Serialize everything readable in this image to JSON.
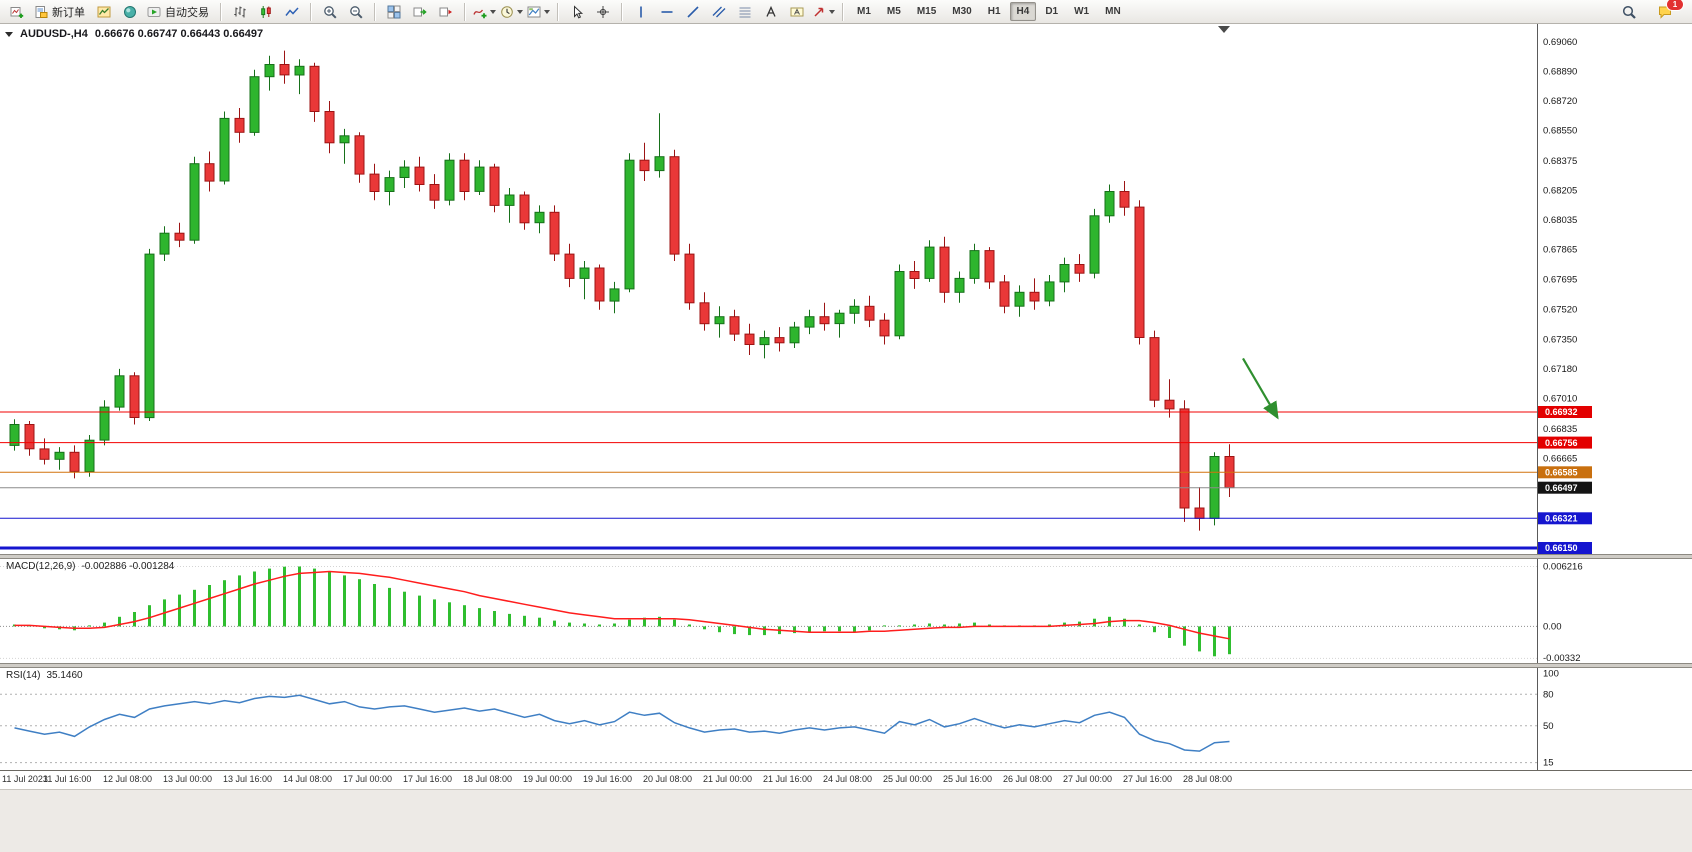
{
  "toolbar": {
    "groups": [
      {
        "name": "standard-group",
        "items": [
          {
            "name": "new-chart-button",
            "icon": "chart-plus"
          },
          {
            "name": "new-order-button",
            "icon": "new-order",
            "label": "新订单"
          },
          {
            "name": "market-watch-button",
            "icon": "market-watch"
          },
          {
            "name": "navigator-button",
            "icon": "navigator"
          },
          {
            "name": "autotrading-button",
            "icon": "autotrading",
            "label": "自动交易"
          }
        ]
      },
      {
        "name": "chart-type-group",
        "items": [
          {
            "name": "bar-chart-button",
            "icon": "bars"
          },
          {
            "name": "candlestick-chart-button",
            "icon": "candles"
          },
          {
            "name": "line-chart-button",
            "icon": "line-chart"
          }
        ]
      },
      {
        "name": "zoom-group",
        "items": [
          {
            "name": "zoom-in-button",
            "icon": "zoom-in"
          },
          {
            "name": "zoom-out-button",
            "icon": "zoom-out"
          }
        ]
      },
      {
        "name": "window-group",
        "items": [
          {
            "name": "tile-windows-button",
            "icon": "tile-windows"
          },
          {
            "name": "auto-scroll-button",
            "icon": "auto-scroll"
          },
          {
            "name": "chart-shift-button",
            "icon": "chart-shift"
          }
        ]
      },
      {
        "name": "dropdown-group",
        "items": [
          {
            "name": "indicators-button",
            "icon": "indicators",
            "dropdown": true
          },
          {
            "name": "periods-button",
            "icon": "periods",
            "dropdown": true
          },
          {
            "name": "templates-button",
            "icon": "templates",
            "dropdown": true
          }
        ]
      },
      {
        "name": "cursor-group",
        "items": [
          {
            "name": "cursor-button",
            "icon": "cursor"
          },
          {
            "name": "crosshair-button",
            "icon": "crosshair"
          }
        ]
      },
      {
        "name": "objects-group",
        "items": [
          {
            "name": "vertical-line-button",
            "icon": "vline"
          },
          {
            "name": "horizontal-line-button",
            "icon": "hline"
          },
          {
            "name": "trendline-button",
            "icon": "trendline"
          },
          {
            "name": "equidistant-channel-button",
            "icon": "channel"
          },
          {
            "name": "fibonacci-button",
            "icon": "fibonacci"
          },
          {
            "name": "text-button",
            "icon": "text"
          },
          {
            "name": "text-label-button",
            "icon": "text-label"
          },
          {
            "name": "arrows-button",
            "icon": "arrows-dropdown",
            "dropdown": true
          }
        ]
      }
    ],
    "timeframes": {
      "items": [
        "M1",
        "M5",
        "M15",
        "M30",
        "H1",
        "H4",
        "D1",
        "W1",
        "MN"
      ],
      "active": "H4"
    },
    "right": [
      {
        "name": "search-button",
        "icon": "search"
      },
      {
        "name": "notifications-button",
        "icon": "chat",
        "badge": "1"
      }
    ]
  },
  "chart": {
    "title": {
      "symbol_period": "AUDUSD-,H4",
      "ohlc": "0.66676 0.66747 0.66443 0.66497"
    },
    "macd_label": "MACD(12,26,9)",
    "macd_values": "-0.002886 -0.001284",
    "rsi_label": "RSI(14)",
    "rsi_values": "35.1460"
  },
  "colors": {
    "bull": "#2eb52e",
    "bull_border": "#17701a",
    "bear": "#e93838",
    "bear_border": "#9c1414",
    "macd_histogram": "#2fbe2f",
    "macd_signal": "#ff1d1d",
    "rsi_line": "#3f7fc4",
    "dashed_level": "#b0b0b0",
    "axis_border": "#5a5a5a",
    "arrow": "#2f8f2f"
  },
  "chart_data": [
    {
      "type": "candlestick",
      "title": "AUDUSD-,H4",
      "timeframe": "H4",
      "x_labels": [
        "11 Jul 2023",
        "11 Jul 16:00",
        "12 Jul 08:00",
        "13 Jul 00:00",
        "13 Jul 16:00",
        "14 Jul 08:00",
        "17 Jul 00:00",
        "17 Jul 16:00",
        "18 Jul 08:00",
        "19 Jul 00:00",
        "19 Jul 16:00",
        "20 Jul 08:00",
        "21 Jul 00:00",
        "21 Jul 16:00",
        "24 Jul 08:00",
        "25 Jul 00:00",
        "25 Jul 16:00",
        "26 Jul 08:00",
        "27 Jul 00:00",
        "27 Jul 16:00",
        "28 Jul 08:00"
      ],
      "x_label_indices": [
        0,
        4,
        8,
        12,
        16,
        20,
        24,
        28,
        32,
        36,
        40,
        44,
        48,
        52,
        56,
        60,
        64,
        68,
        72,
        76,
        80
      ],
      "y_ticks": [
        "0.69060",
        "0.68890",
        "0.68720",
        "0.68550",
        "0.68375",
        "0.68205",
        "0.68035",
        "0.67865",
        "0.67695",
        "0.67520",
        "0.67350",
        "0.67180",
        "0.67010",
        "0.66835",
        "0.66665"
      ],
      "ylim": [
        0.66116,
        0.69163
      ],
      "candles": [
        [
          0.6674,
          0.6689,
          0.6671,
          0.6686
        ],
        [
          0.6686,
          0.6688,
          0.6668,
          0.6672
        ],
        [
          0.6672,
          0.6678,
          0.6663,
          0.6666
        ],
        [
          0.6666,
          0.6673,
          0.666,
          0.667
        ],
        [
          0.667,
          0.6674,
          0.6655,
          0.6659
        ],
        [
          0.6659,
          0.668,
          0.6656,
          0.6677
        ],
        [
          0.6677,
          0.67,
          0.6674,
          0.6696
        ],
        [
          0.6696,
          0.6718,
          0.6694,
          0.6714
        ],
        [
          0.6714,
          0.6716,
          0.6686,
          0.669
        ],
        [
          0.669,
          0.6787,
          0.6688,
          0.6784
        ],
        [
          0.6784,
          0.68,
          0.678,
          0.6796
        ],
        [
          0.6796,
          0.6802,
          0.6788,
          0.6792
        ],
        [
          0.6792,
          0.684,
          0.679,
          0.6836
        ],
        [
          0.6836,
          0.6843,
          0.682,
          0.6826
        ],
        [
          0.6826,
          0.6866,
          0.6824,
          0.6862
        ],
        [
          0.6862,
          0.6868,
          0.6848,
          0.6854
        ],
        [
          0.6854,
          0.689,
          0.6852,
          0.6886
        ],
        [
          0.6886,
          0.6898,
          0.6878,
          0.6893
        ],
        [
          0.6893,
          0.6901,
          0.6882,
          0.6887
        ],
        [
          0.6887,
          0.6896,
          0.6876,
          0.6892
        ],
        [
          0.6892,
          0.6894,
          0.686,
          0.6866
        ],
        [
          0.6866,
          0.6872,
          0.6842,
          0.6848
        ],
        [
          0.6848,
          0.6856,
          0.6836,
          0.6852
        ],
        [
          0.6852,
          0.6854,
          0.6825,
          0.683
        ],
        [
          0.683,
          0.6836,
          0.6815,
          0.682
        ],
        [
          0.682,
          0.6832,
          0.6812,
          0.6828
        ],
        [
          0.6828,
          0.6838,
          0.6822,
          0.6834
        ],
        [
          0.6834,
          0.684,
          0.682,
          0.6824
        ],
        [
          0.6824,
          0.683,
          0.681,
          0.6815
        ],
        [
          0.6815,
          0.6842,
          0.6812,
          0.6838
        ],
        [
          0.6838,
          0.6842,
          0.6815,
          0.682
        ],
        [
          0.682,
          0.6838,
          0.6818,
          0.6834
        ],
        [
          0.6834,
          0.6836,
          0.6808,
          0.6812
        ],
        [
          0.6812,
          0.6822,
          0.6802,
          0.6818
        ],
        [
          0.6818,
          0.682,
          0.6798,
          0.6802
        ],
        [
          0.6802,
          0.6812,
          0.6796,
          0.6808
        ],
        [
          0.6808,
          0.6812,
          0.678,
          0.6784
        ],
        [
          0.6784,
          0.679,
          0.6765,
          0.677
        ],
        [
          0.677,
          0.678,
          0.6758,
          0.6776
        ],
        [
          0.6776,
          0.6778,
          0.6752,
          0.6757
        ],
        [
          0.6757,
          0.6768,
          0.675,
          0.6764
        ],
        [
          0.6764,
          0.6842,
          0.6762,
          0.6838
        ],
        [
          0.6838,
          0.6848,
          0.6826,
          0.6832
        ],
        [
          0.6832,
          0.6865,
          0.6828,
          0.684
        ],
        [
          0.684,
          0.6844,
          0.678,
          0.6784
        ],
        [
          0.6784,
          0.679,
          0.6752,
          0.6756
        ],
        [
          0.6756,
          0.6762,
          0.674,
          0.6744
        ],
        [
          0.6744,
          0.6754,
          0.6736,
          0.6748
        ],
        [
          0.6748,
          0.6752,
          0.6734,
          0.6738
        ],
        [
          0.6738,
          0.6744,
          0.6726,
          0.6732
        ],
        [
          0.6732,
          0.674,
          0.6724,
          0.6736
        ],
        [
          0.6736,
          0.6742,
          0.6728,
          0.6733
        ],
        [
          0.6733,
          0.6745,
          0.673,
          0.6742
        ],
        [
          0.6742,
          0.6752,
          0.6738,
          0.6748
        ],
        [
          0.6748,
          0.6756,
          0.674,
          0.6744
        ],
        [
          0.6744,
          0.6752,
          0.6736,
          0.675
        ],
        [
          0.675,
          0.6758,
          0.6744,
          0.6754
        ],
        [
          0.6754,
          0.676,
          0.6742,
          0.6746
        ],
        [
          0.6746,
          0.675,
          0.6732,
          0.6737
        ],
        [
          0.6737,
          0.6778,
          0.6735,
          0.6774
        ],
        [
          0.6774,
          0.678,
          0.6764,
          0.677
        ],
        [
          0.677,
          0.6792,
          0.6768,
          0.6788
        ],
        [
          0.6788,
          0.6794,
          0.6756,
          0.6762
        ],
        [
          0.6762,
          0.6774,
          0.6756,
          0.677
        ],
        [
          0.677,
          0.679,
          0.6767,
          0.6786
        ],
        [
          0.6786,
          0.6788,
          0.6764,
          0.6768
        ],
        [
          0.6768,
          0.6772,
          0.675,
          0.6754
        ],
        [
          0.6754,
          0.6766,
          0.6748,
          0.6762
        ],
        [
          0.6762,
          0.677,
          0.6752,
          0.6757
        ],
        [
          0.6757,
          0.6772,
          0.6754,
          0.6768
        ],
        [
          0.6768,
          0.6782,
          0.6762,
          0.6778
        ],
        [
          0.6778,
          0.6784,
          0.6768,
          0.6773
        ],
        [
          0.6773,
          0.681,
          0.677,
          0.6806
        ],
        [
          0.6806,
          0.6824,
          0.6802,
          0.682
        ],
        [
          0.682,
          0.6826,
          0.6806,
          0.6811
        ],
        [
          0.6811,
          0.6815,
          0.6732,
          0.6736
        ],
        [
          0.6736,
          0.674,
          0.6696,
          0.67
        ],
        [
          0.67,
          0.6712,
          0.669,
          0.6695
        ],
        [
          0.6695,
          0.67,
          0.663,
          0.6638
        ],
        [
          0.6638,
          0.665,
          0.6625,
          0.6632
        ],
        [
          0.6632,
          0.667,
          0.6628,
          0.66676
        ],
        [
          0.66676,
          0.66747,
          0.66443,
          0.66497
        ]
      ],
      "levels": [
        {
          "label": "0.66932",
          "price": 0.66932,
          "color": "#f20000",
          "bg": "#e30000",
          "width": 1
        },
        {
          "label": "0.66756",
          "price": 0.66756,
          "color": "#f20000",
          "bg": "#e30000",
          "width": 1
        },
        {
          "label": "0.66585",
          "price": 0.66585,
          "color": "#d2720d",
          "bg": "#c9700f",
          "width": 1
        },
        {
          "label": "0.66497",
          "price": 0.66497,
          "color": "#8c8c8c",
          "bg": "#141414",
          "width": 1,
          "role": "bid-price"
        },
        {
          "label": "0.66321",
          "price": 0.66321,
          "color": "#1515cf",
          "bg": "#1515cf",
          "width": 1
        },
        {
          "label": "0.66150",
          "price": 0.6615,
          "color": "#1515cf",
          "bg": "#1515cf",
          "width": 3
        }
      ],
      "current_price": "0.66497",
      "annotation_arrow": {
        "from_index": 81.9,
        "from_price": 0.6724,
        "to_index": 84.2,
        "to_price": 0.669,
        "color": "#2f8f2f"
      }
    },
    {
      "type": "bar",
      "title": "MACD(12,26,9)",
      "current_values": [
        -0.002886,
        -0.001284
      ],
      "y_ticks": [
        {
          "label": "0.006216",
          "value": 0.006216
        },
        {
          "label": "0.00",
          "value": 0
        },
        {
          "label": "-0.00332",
          "value": -0.00332
        }
      ],
      "ylim": [
        -0.0038,
        0.007
      ],
      "histogram": [
        0.0002,
        0.0,
        -0.0002,
        -0.0003,
        -0.0004,
        -0.0001,
        0.0004,
        0.001,
        0.0015,
        0.0022,
        0.0028,
        0.0033,
        0.0038,
        0.0043,
        0.0048,
        0.0053,
        0.0057,
        0.006,
        0.0062,
        0.006216,
        0.006,
        0.0057,
        0.0053,
        0.0049,
        0.0044,
        0.004,
        0.0036,
        0.0032,
        0.0028,
        0.0025,
        0.0022,
        0.0019,
        0.0016,
        0.0013,
        0.0011,
        0.0009,
        0.0006,
        0.0004,
        0.0003,
        0.0002,
        0.0003,
        0.0007,
        0.0009,
        0.001,
        0.0007,
        0.0002,
        -0.0003,
        -0.0006,
        -0.0008,
        -0.0009,
        -0.0009,
        -0.0008,
        -0.0007,
        -0.0006,
        -0.0005,
        -0.0005,
        -0.0006,
        -0.0004,
        -0.0001,
        0.0001,
        0.0002,
        0.0003,
        0.0002,
        0.0003,
        0.0004,
        0.0002,
        0.0,
        -0.0001,
        0.0,
        0.0002,
        0.0004,
        0.0005,
        0.0008,
        0.001,
        0.0008,
        0.0002,
        -0.0006,
        -0.0012,
        -0.002,
        -0.0026,
        -0.0031,
        -0.002886
      ],
      "signal": [
        0.0001,
        0.0001,
        0.0,
        -0.0001,
        -0.0002,
        -0.0002,
        -0.0001,
        0.0002,
        0.0005,
        0.0009,
        0.0014,
        0.0019,
        0.0024,
        0.0029,
        0.0034,
        0.0039,
        0.0044,
        0.0048,
        0.0052,
        0.0055,
        0.0056,
        0.0057,
        0.0056,
        0.0055,
        0.0053,
        0.0051,
        0.0048,
        0.0045,
        0.0042,
        0.0039,
        0.0036,
        0.0032,
        0.0029,
        0.0026,
        0.0023,
        0.002,
        0.0017,
        0.0014,
        0.0012,
        0.001,
        0.0008,
        0.0008,
        0.0008,
        0.0008,
        0.0008,
        0.0007,
        0.0005,
        0.0003,
        0.0001,
        -0.0001,
        -0.0003,
        -0.0004,
        -0.0005,
        -0.0006,
        -0.0006,
        -0.0006,
        -0.0006,
        -0.0005,
        -0.0005,
        -0.0004,
        -0.0003,
        -0.0002,
        -0.0001,
        -0.0001,
        0.0,
        0.0,
        0.0,
        0.0,
        0.0,
        0.0,
        0.0001,
        0.0002,
        0.0003,
        0.0005,
        0.0006,
        0.0006,
        0.0004,
        0.0001,
        -0.0003,
        -0.0007,
        -0.001,
        -0.001284
      ]
    },
    {
      "type": "line",
      "title": "RSI(14)",
      "current_value": 35.146,
      "y_ticks": [
        {
          "label": "100",
          "value": 100
        },
        {
          "label": "80",
          "value": 80
        },
        {
          "label": "50",
          "value": 50
        },
        {
          "label": "15",
          "value": 15
        }
      ],
      "dashed_levels": [
        80,
        50,
        15
      ],
      "ylim": [
        8,
        105
      ],
      "values": [
        48,
        45,
        42,
        44,
        40,
        49,
        56,
        61,
        58,
        66,
        69,
        71,
        73,
        71,
        74,
        72,
        76,
        78,
        77,
        79,
        75,
        71,
        73,
        68,
        66,
        68,
        69,
        66,
        63,
        65,
        67,
        64,
        66,
        62,
        58,
        61,
        55,
        52,
        55,
        51,
        54,
        63,
        60,
        62,
        53,
        48,
        44,
        46,
        47,
        44,
        45,
        43,
        46,
        48,
        46,
        48,
        49,
        46,
        43,
        54,
        51,
        56,
        49,
        52,
        57,
        52,
        48,
        51,
        49,
        52,
        55,
        53,
        60,
        63,
        58,
        42,
        36,
        33,
        27,
        26,
        34,
        35.146
      ]
    }
  ]
}
